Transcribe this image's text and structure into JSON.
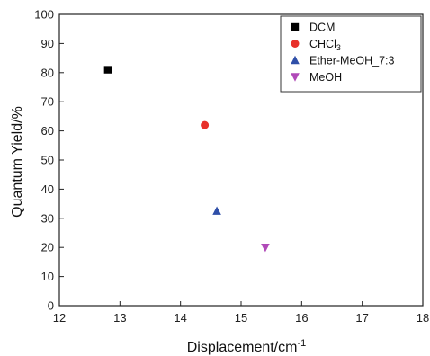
{
  "chart_data": {
    "type": "scatter",
    "title": "",
    "xlabel": "Displacement/cm",
    "xlabel_superscript": "-1",
    "ylabel": "Quantum Yield/%",
    "xlim": [
      12,
      18
    ],
    "ylim": [
      0,
      100
    ],
    "xticks": [
      "12",
      "13",
      "14",
      "15",
      "16",
      "17",
      "18"
    ],
    "yticks": [
      "0",
      "10",
      "20",
      "30",
      "40",
      "50",
      "60",
      "70",
      "80",
      "90",
      "100"
    ],
    "grid": false,
    "legend_position": "top-right",
    "series": [
      {
        "name": "DCM",
        "name_main": "DCM",
        "name_sub": "",
        "marker": "square",
        "color": "#000000",
        "x": [
          12.8
        ],
        "y": [
          81
        ]
      },
      {
        "name": "CHCl3",
        "name_main": "CHCl",
        "name_sub": "3",
        "marker": "circle",
        "color": "#e8302a",
        "x": [
          14.4
        ],
        "y": [
          62
        ]
      },
      {
        "name": "Ether-MeOH_7:3",
        "name_main": "Ether-MeOH_7:3",
        "name_sub": "",
        "marker": "triangle-up",
        "color": "#2f4fa8",
        "x": [
          14.6
        ],
        "y": [
          32.5
        ]
      },
      {
        "name": "MeOH",
        "name_main": "MeOH",
        "name_sub": "",
        "marker": "triangle-down",
        "color": "#b04ab8",
        "x": [
          15.4
        ],
        "y": [
          20
        ]
      }
    ]
  }
}
